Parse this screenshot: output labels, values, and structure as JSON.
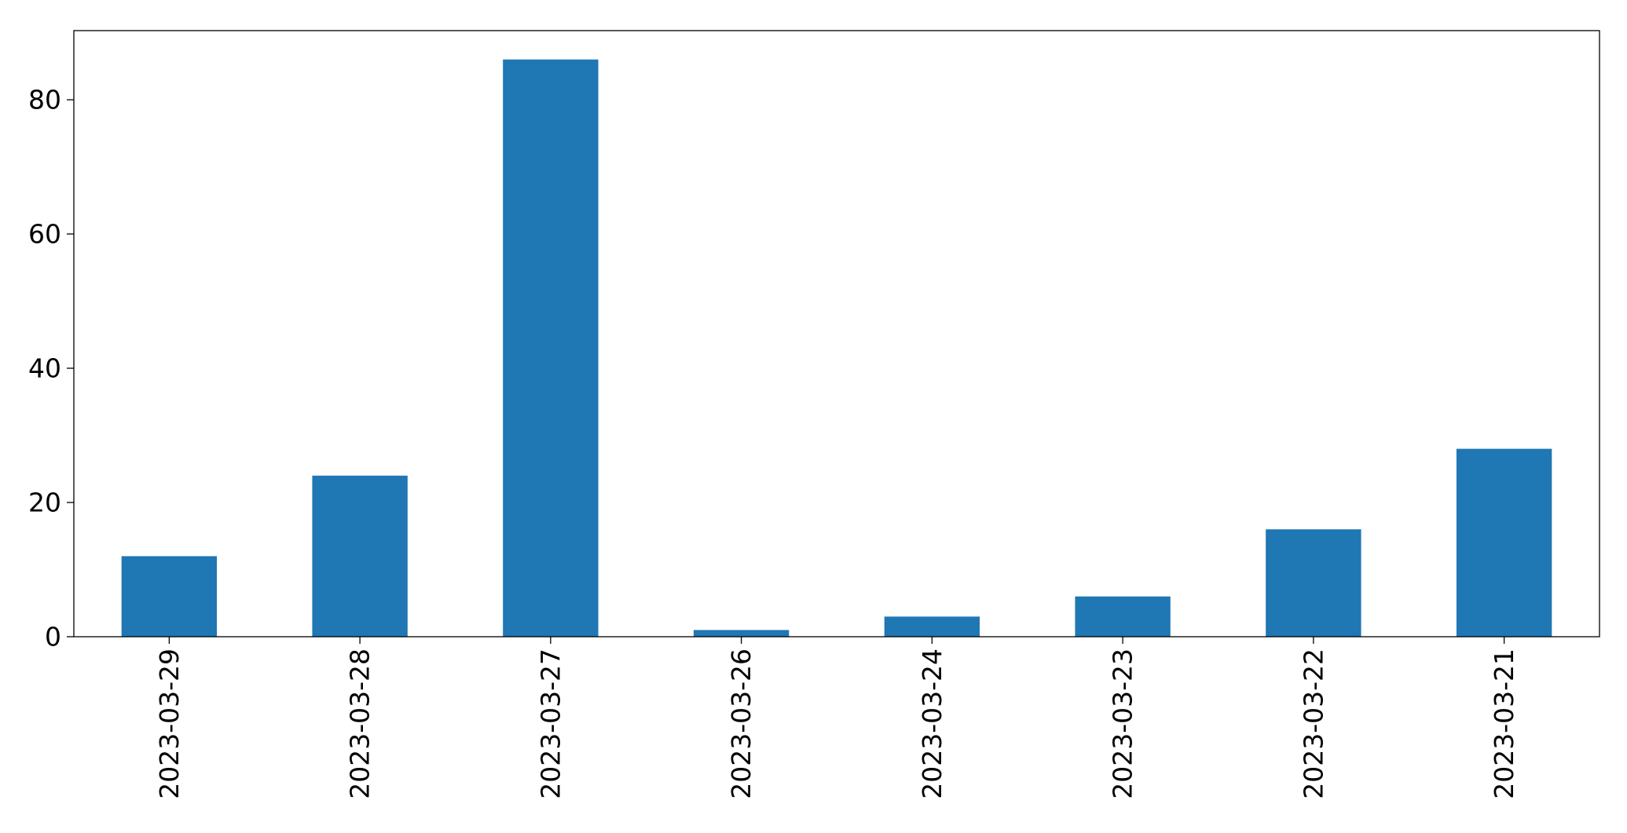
{
  "chart_data": {
    "type": "bar",
    "title": "",
    "xlabel": "",
    "ylabel": "",
    "categories": [
      "2023-03-29",
      "2023-03-28",
      "2023-03-27",
      "2023-03-26",
      "2023-03-24",
      "2023-03-23",
      "2023-03-22",
      "2023-03-21"
    ],
    "values": [
      12,
      24,
      86,
      1,
      3,
      6,
      16,
      28
    ],
    "ylim": [
      0,
      90.3
    ],
    "yticks": [
      0,
      20,
      40,
      60,
      80
    ],
    "ytick_labels": [
      "0",
      "20",
      "40",
      "60",
      "80"
    ],
    "xtick_rotation": "vertical",
    "grid": false,
    "legend": "none",
    "colors": {
      "bar": "#1f77b4",
      "axes": "#000000",
      "background": "#ffffff"
    }
  }
}
